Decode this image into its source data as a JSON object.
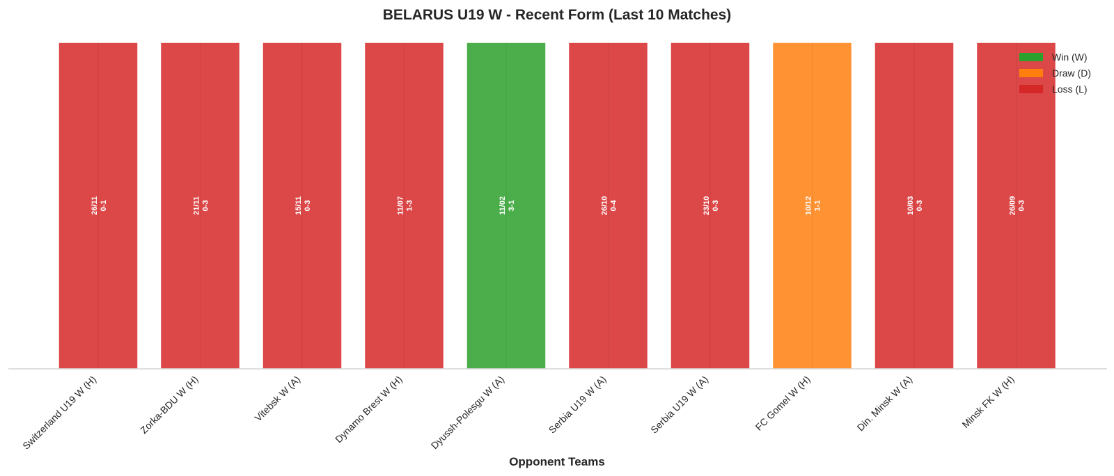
{
  "chart_data": {
    "type": "bar",
    "title": "BELARUS U19 W - Recent Form (Last 10 Matches)",
    "xlabel": "Opponent Teams",
    "ylabel": "",
    "ylim": [
      0,
      1
    ],
    "grid": false,
    "legend_placement": "top-right",
    "categories": [
      "Switzerland U19 W (H)",
      "Zorka-BDU W (H)",
      "Vitebsk W (A)",
      "Dynamo Brest W (H)",
      "Dyussh-Polesgu W (A)",
      "Serbia U19 W (A)",
      "Serbia U19 W (A)",
      "FC Gomel W (H)",
      "Din. Minsk W (A)",
      "Minsk FK W (H)"
    ],
    "values": [
      1,
      1,
      1,
      1,
      1,
      1,
      1,
      1,
      1,
      1
    ],
    "results": [
      "L",
      "L",
      "L",
      "L",
      "W",
      "L",
      "L",
      "D",
      "L",
      "L"
    ],
    "dates": [
      "26/11",
      "21/11",
      "15/11",
      "11/07",
      "11/02",
      "26/10",
      "23/10",
      "10/12",
      "10/03",
      "26/09"
    ],
    "scores": [
      "0-1",
      "0-3",
      "0-3",
      "1-3",
      "3-1",
      "0-4",
      "0-3",
      "1-1",
      "0-3",
      "0-3"
    ],
    "legend": [
      {
        "key": "W",
        "label": "Win (W)",
        "color": "#2ca02c"
      },
      {
        "key": "D",
        "label": "Draw (D)",
        "color": "#ff7f0e"
      },
      {
        "key": "L",
        "label": "Loss (L)",
        "color": "#d62728"
      }
    ]
  }
}
